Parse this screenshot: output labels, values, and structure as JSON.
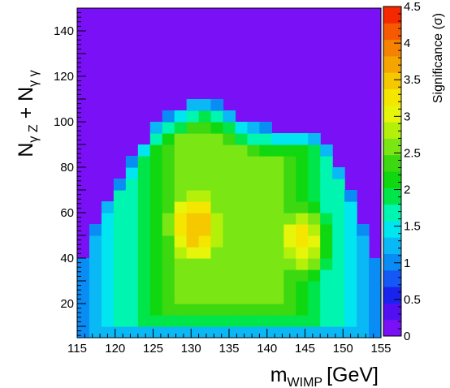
{
  "chart_data": {
    "type": "heatmap",
    "title": "",
    "xlabel": "m",
    "xlabel_sub": "WIMP",
    "xlabel_unit": "[GeV]",
    "ylabel_parts": [
      "N",
      "γ Z",
      " + N",
      "γ γ"
    ],
    "zlabel": "Significance (σ)",
    "x_range": [
      115,
      155
    ],
    "y_range": [
      5,
      150
    ],
    "z_range": [
      0,
      4.5
    ],
    "x_bins": 25,
    "y_bins": 29,
    "x_ticks": [
      115,
      120,
      125,
      130,
      135,
      140,
      145,
      150,
      155
    ],
    "y_ticks": [
      20,
      40,
      60,
      80,
      100,
      120,
      140
    ],
    "z_ticks": [
      "0",
      "0.5",
      "1",
      "1.5",
      "2",
      "2.5",
      "3",
      "3.5",
      "4",
      "4.5"
    ],
    "palette": [
      "#7a10f6",
      "#5210f2",
      "#1a22ee",
      "#1458f5",
      "#0a8cf5",
      "#0ab8f5",
      "#00e6f0",
      "#00f5b0",
      "#00e64a",
      "#10d810",
      "#3cd810",
      "#7ae614",
      "#b4f00a",
      "#e6f50a",
      "#f5e600",
      "#f5c800",
      "#f5a500",
      "#f58200",
      "#f55a00",
      "#f52800"
    ],
    "background_color": "#7a10f6",
    "region_boundary": {
      "x": [
        115,
        116.6,
        118.2,
        119.8,
        121.4,
        123.0,
        124.6,
        126.2,
        127.8,
        129.4,
        131.0,
        132.6,
        134.2,
        135.8,
        137.4,
        139.0,
        140.6,
        142.2,
        143.8,
        145.4,
        147.0,
        148.6,
        150.2,
        151.8,
        153.4,
        155
      ],
      "y_top": [
        35,
        45,
        60,
        70,
        77,
        88,
        96,
        102,
        105,
        108,
        110,
        110,
        107,
        103,
        100,
        99,
        97,
        97,
        97,
        97,
        93,
        85,
        75,
        60,
        45,
        35
      ]
    },
    "peaks": [
      {
        "x": 130.5,
        "y": 54,
        "value": 3.6,
        "sx": 4.3,
        "sy": 21
      },
      {
        "x": 144.5,
        "y": 48,
        "value": 3.3,
        "sx": 3.6,
        "sy": 18
      }
    ],
    "edge_value": 1.0,
    "floor_value": 1.8
  }
}
